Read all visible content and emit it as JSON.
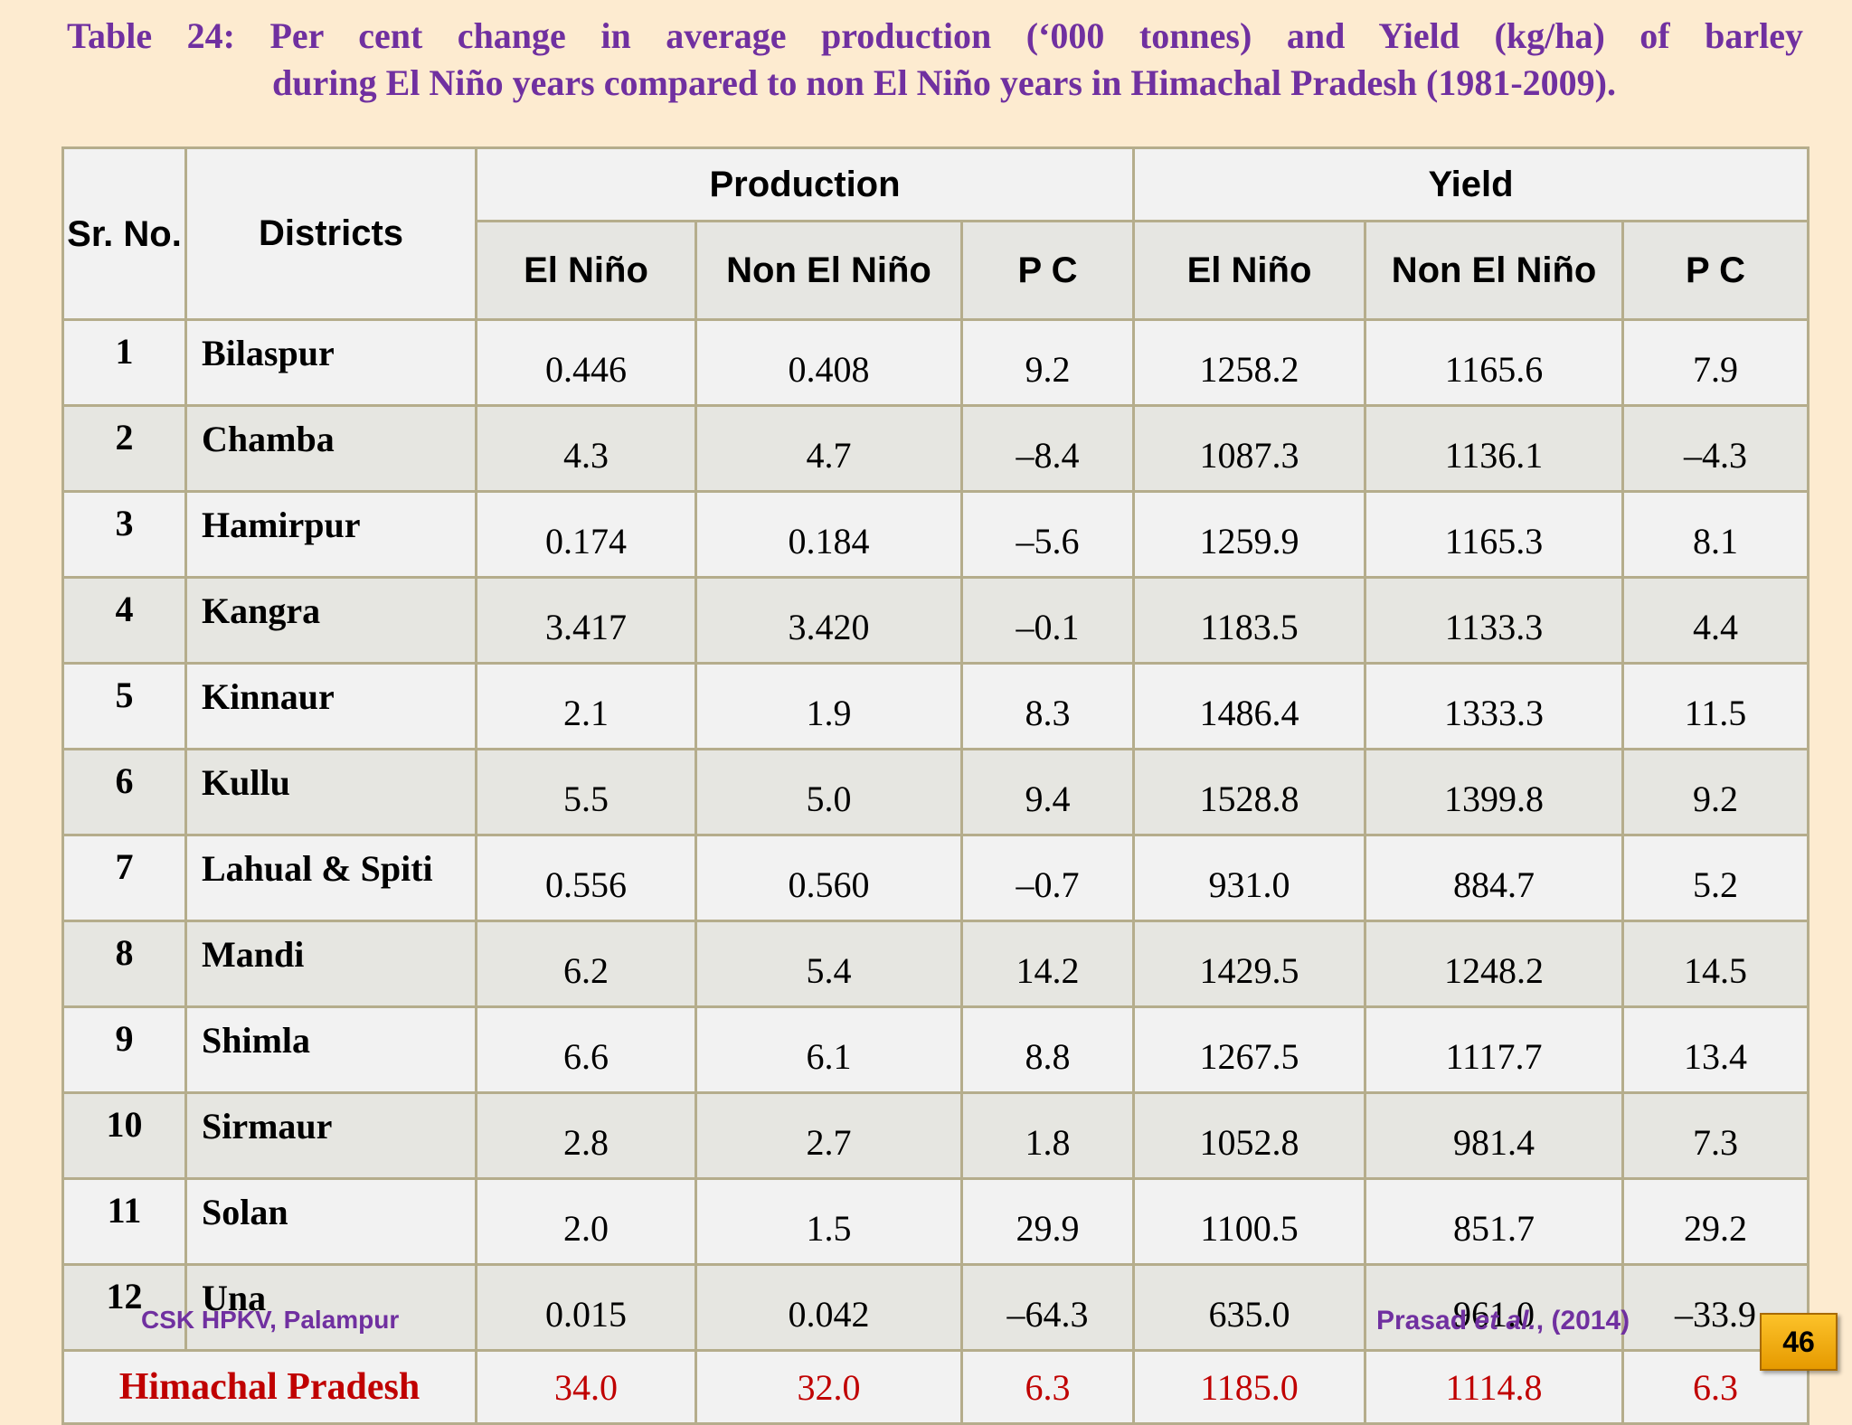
{
  "title": {
    "line1": "Table 24: Per cent change in average production (‘000 tonnes) and Yield (kg/ha) of barley",
    "line2": "during El Niño years compared to non El Niño years in Himachal Pradesh (1981-2009)."
  },
  "table": {
    "headers": {
      "sr_no": "Sr. No.",
      "districts": "Districts",
      "production": "Production",
      "yield": "Yield",
      "el_nino": "El Niño",
      "non_el_nino": "Non El Niño",
      "pc": "P C"
    },
    "rows": [
      {
        "sr": "1",
        "district": "Bilaspur",
        "prod_en": "0.446",
        "prod_nen": "0.408",
        "prod_pc": "9.2",
        "yield_en": "1258.2",
        "yield_nen": "1165.6",
        "yield_pc": "7.9"
      },
      {
        "sr": "2",
        "district": "Chamba",
        "prod_en": "4.3",
        "prod_nen": "4.7",
        "prod_pc": "–8.4",
        "yield_en": "1087.3",
        "yield_nen": "1136.1",
        "yield_pc": "–4.3"
      },
      {
        "sr": "3",
        "district": "Hamirpur",
        "prod_en": "0.174",
        "prod_nen": "0.184",
        "prod_pc": "–5.6",
        "yield_en": "1259.9",
        "yield_nen": "1165.3",
        "yield_pc": "8.1"
      },
      {
        "sr": "4",
        "district": "Kangra",
        "prod_en": "3.417",
        "prod_nen": "3.420",
        "prod_pc": "–0.1",
        "yield_en": "1183.5",
        "yield_nen": "1133.3",
        "yield_pc": "4.4"
      },
      {
        "sr": "5",
        "district": "Kinnaur",
        "prod_en": "2.1",
        "prod_nen": "1.9",
        "prod_pc": "8.3",
        "yield_en": "1486.4",
        "yield_nen": "1333.3",
        "yield_pc": "11.5"
      },
      {
        "sr": "6",
        "district": "Kullu",
        "prod_en": "5.5",
        "prod_nen": "5.0",
        "prod_pc": "9.4",
        "yield_en": "1528.8",
        "yield_nen": "1399.8",
        "yield_pc": "9.2"
      },
      {
        "sr": "7",
        "district": "Lahual & Spiti",
        "prod_en": "0.556",
        "prod_nen": "0.560",
        "prod_pc": "–0.7",
        "yield_en": "931.0",
        "yield_nen": "884.7",
        "yield_pc": "5.2"
      },
      {
        "sr": "8",
        "district": "Mandi",
        "prod_en": "6.2",
        "prod_nen": "5.4",
        "prod_pc": "14.2",
        "yield_en": "1429.5",
        "yield_nen": "1248.2",
        "yield_pc": "14.5"
      },
      {
        "sr": "9",
        "district": "Shimla",
        "prod_en": "6.6",
        "prod_nen": "6.1",
        "prod_pc": "8.8",
        "yield_en": "1267.5",
        "yield_nen": "1117.7",
        "yield_pc": "13.4"
      },
      {
        "sr": "10",
        "district": "Sirmaur",
        "prod_en": "2.8",
        "prod_nen": "2.7",
        "prod_pc": "1.8",
        "yield_en": "1052.8",
        "yield_nen": "981.4",
        "yield_pc": "7.3"
      },
      {
        "sr": "11",
        "district": "Solan",
        "prod_en": "2.0",
        "prod_nen": "1.5",
        "prod_pc": "29.9",
        "yield_en": "1100.5",
        "yield_nen": "851.7",
        "yield_pc": "29.2"
      },
      {
        "sr": "12",
        "district": "Una",
        "prod_en": "0.015",
        "prod_nen": "0.042",
        "prod_pc": "–64.3",
        "yield_en": "635.0",
        "yield_nen": "961.0",
        "yield_pc": "–33.9"
      }
    ],
    "highlighted": {
      "district_sr": "2",
      "pc_sr": [
        "2",
        "12"
      ],
      "color": "#c00000"
    },
    "total": {
      "name": "Himachal Pradesh",
      "prod_en": "34.0",
      "prod_nen": "32.0",
      "prod_pc": "6.3",
      "yield_en": "1185.0",
      "yield_nen": "1114.8",
      "yield_pc": "6.3"
    }
  },
  "footer": {
    "institution": "CSK HPKV, Palampur",
    "citation_author": "Prasad ",
    "citation_etal": "et al.",
    "citation_year": ", (2014)",
    "page_number": "46"
  },
  "colors": {
    "background": "#fdebd0",
    "title": "#7030a0",
    "negative": "#c00000",
    "page_badge": "#f5b010"
  }
}
